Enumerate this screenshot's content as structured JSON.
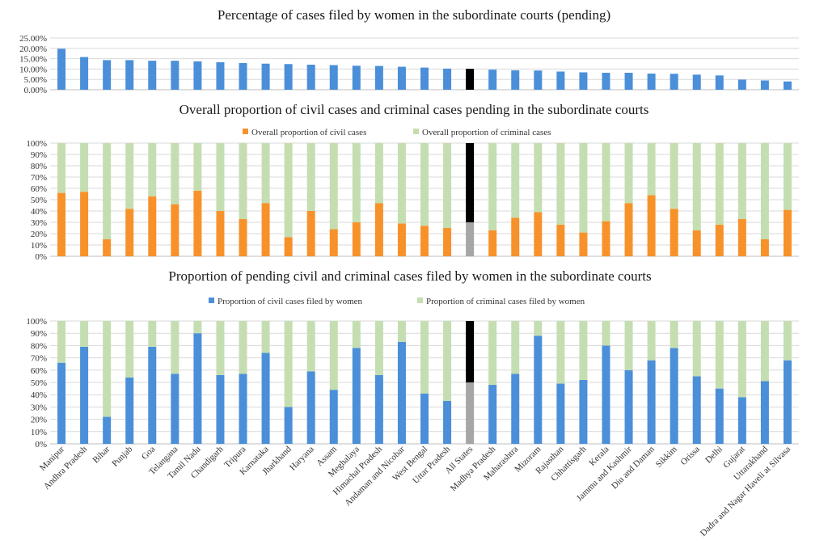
{
  "chart_data": [
    {
      "type": "bar",
      "title": "Percentage of cases filed by women in the subordinate courts (pending)",
      "ylim": [
        0,
        25
      ],
      "y_ticks": [
        "25.00%",
        "20.00%",
        "15.00%",
        "10.00%",
        "5.00%",
        "0.00%"
      ],
      "colors": {
        "bar": "#4a8fd8",
        "highlight": "#000000"
      },
      "values": [
        19.8,
        15.8,
        14.3,
        14.3,
        14.0,
        14.0,
        13.7,
        13.3,
        12.9,
        12.6,
        12.4,
        12.1,
        11.9,
        11.6,
        11.5,
        11.1,
        10.7,
        10.2,
        10.1,
        9.7,
        9.4,
        9.3,
        8.8,
        8.4,
        8.2,
        8.2,
        7.8,
        7.7,
        7.3,
        6.9,
        4.9,
        4.5,
        4.0
      ],
      "highlight_index": 18,
      "grid": true
    },
    {
      "type": "bar",
      "stacked": true,
      "title": "Overall proportion of civil cases and criminal cases pending in the subordinate courts",
      "ylim": [
        0,
        100
      ],
      "y_ticks": [
        "100%",
        "90%",
        "80%",
        "70%",
        "60%",
        "50%",
        "40%",
        "30%",
        "20%",
        "10%",
        "0%"
      ],
      "legend_position": "top-center",
      "series": [
        {
          "name": "Overall proportion of civil cases",
          "color": "#f7922a",
          "highlight_color": "#a6a6a6",
          "values": [
            56,
            57,
            15,
            42,
            53,
            46,
            58,
            40,
            33,
            47,
            17,
            40,
            24,
            30,
            47,
            29,
            27,
            25,
            30,
            23,
            34,
            39,
            28,
            21,
            31,
            47,
            54,
            42,
            23,
            28,
            33,
            15,
            41
          ]
        },
        {
          "name": "Overall proportion of criminal cases",
          "color": "#c5deb1",
          "highlight_color": "#000000",
          "values": [
            44,
            43,
            85,
            58,
            47,
            54,
            42,
            60,
            67,
            53,
            83,
            60,
            76,
            70,
            53,
            71,
            73,
            75,
            70,
            77,
            66,
            61,
            72,
            79,
            69,
            53,
            46,
            58,
            77,
            72,
            67,
            85,
            59
          ]
        }
      ],
      "highlight_index": 18,
      "grid": true
    },
    {
      "type": "bar",
      "stacked": true,
      "title": "Proportion of pending civil and criminal cases filed by women in the subordinate courts",
      "ylim": [
        0,
        100
      ],
      "y_ticks": [
        "100%",
        "90%",
        "80%",
        "70%",
        "60%",
        "50%",
        "40%",
        "30%",
        "20%",
        "10%",
        "0%"
      ],
      "legend_position": "top-center",
      "categories": [
        "Manipur",
        "Andhra Pradesh",
        "Bihar",
        "Punjab",
        "Goa",
        "Telangana",
        "Tamil Nadu",
        "Chandigarh",
        "Tripura",
        "Karnataka",
        "Jharkhand",
        "Haryana",
        "Assam",
        "Meghalaya",
        "Himachal Pradesh",
        "Andaman and Nicobar",
        "West Bengal",
        "Uttar Pradesh",
        "All States",
        "Madhya Pradesh",
        "Maharashtra",
        "Mizoram",
        "Rajasthan",
        "Chhattisgarh",
        "Kerala",
        "Jammu and Kashmir",
        "Diu and Daman",
        "Sikkim",
        "Orissa",
        "Delhi",
        "Gujarat",
        "Uttarakhand",
        "Dadra and Nagar Haveli at Silvasa"
      ],
      "series": [
        {
          "name": "Proportion of civil cases filed by women",
          "color": "#4a8fd8",
          "highlight_color": "#a6a6a6",
          "values": [
            66,
            79,
            22,
            54,
            79,
            57,
            90,
            56,
            57,
            74,
            30,
            59,
            44,
            78,
            56,
            83,
            41,
            35,
            50,
            48,
            57,
            88,
            49,
            52,
            80,
            60,
            68,
            78,
            55,
            45,
            38,
            51,
            68
          ]
        },
        {
          "name": "Proportion of criminal cases filed by women",
          "color": "#c5deb1",
          "highlight_color": "#000000",
          "values": [
            34,
            21,
            78,
            46,
            21,
            43,
            10,
            44,
            43,
            26,
            70,
            41,
            56,
            22,
            44,
            17,
            59,
            65,
            50,
            52,
            43,
            12,
            51,
            48,
            20,
            40,
            32,
            22,
            45,
            55,
            62,
            49,
            32
          ]
        }
      ],
      "highlight_index": 18,
      "grid": true
    }
  ]
}
